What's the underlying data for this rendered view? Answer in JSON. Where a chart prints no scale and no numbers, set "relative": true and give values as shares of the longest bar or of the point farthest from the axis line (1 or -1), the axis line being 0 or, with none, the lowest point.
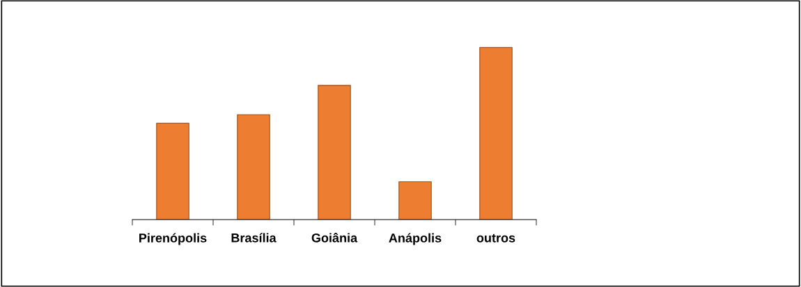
{
  "chart_data": {
    "type": "bar",
    "relative": true,
    "categories": [
      "Pirenópolis",
      "Brasília",
      "Goiânia",
      "Anápolis",
      "outros"
    ],
    "values": [
      0.56,
      0.61,
      0.78,
      0.22,
      1.0
    ],
    "color": "#ed7d31",
    "grid": false,
    "legend": false
  }
}
